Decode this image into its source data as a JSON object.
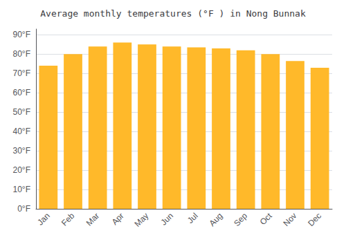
{
  "chart_data": {
    "type": "bar",
    "title": "Average monthly temperatures (°F ) in Nong Bunnak",
    "categories": [
      "Jan",
      "Feb",
      "Mar",
      "Apr",
      "May",
      "Jun",
      "Jul",
      "Aug",
      "Sep",
      "Oct",
      "Nov",
      "Dec"
    ],
    "values": [
      74,
      80,
      84,
      86,
      85,
      84,
      83.5,
      83,
      82,
      80,
      76.5,
      73
    ],
    "color": "#FFB92A",
    "ylim": [
      0,
      93
    ],
    "yticks": [
      {
        "value": 0,
        "label": "0°F"
      },
      {
        "value": 10,
        "label": "10°F"
      },
      {
        "value": 20,
        "label": "20°F"
      },
      {
        "value": 30,
        "label": "30°F"
      },
      {
        "value": 40,
        "label": "40°F"
      },
      {
        "value": 50,
        "label": "50°F"
      },
      {
        "value": 60,
        "label": "60°F"
      },
      {
        "value": 70,
        "label": "70°F"
      },
      {
        "value": 80,
        "label": "80°F"
      },
      {
        "value": 90,
        "label": "90°F"
      }
    ],
    "grid": true
  }
}
